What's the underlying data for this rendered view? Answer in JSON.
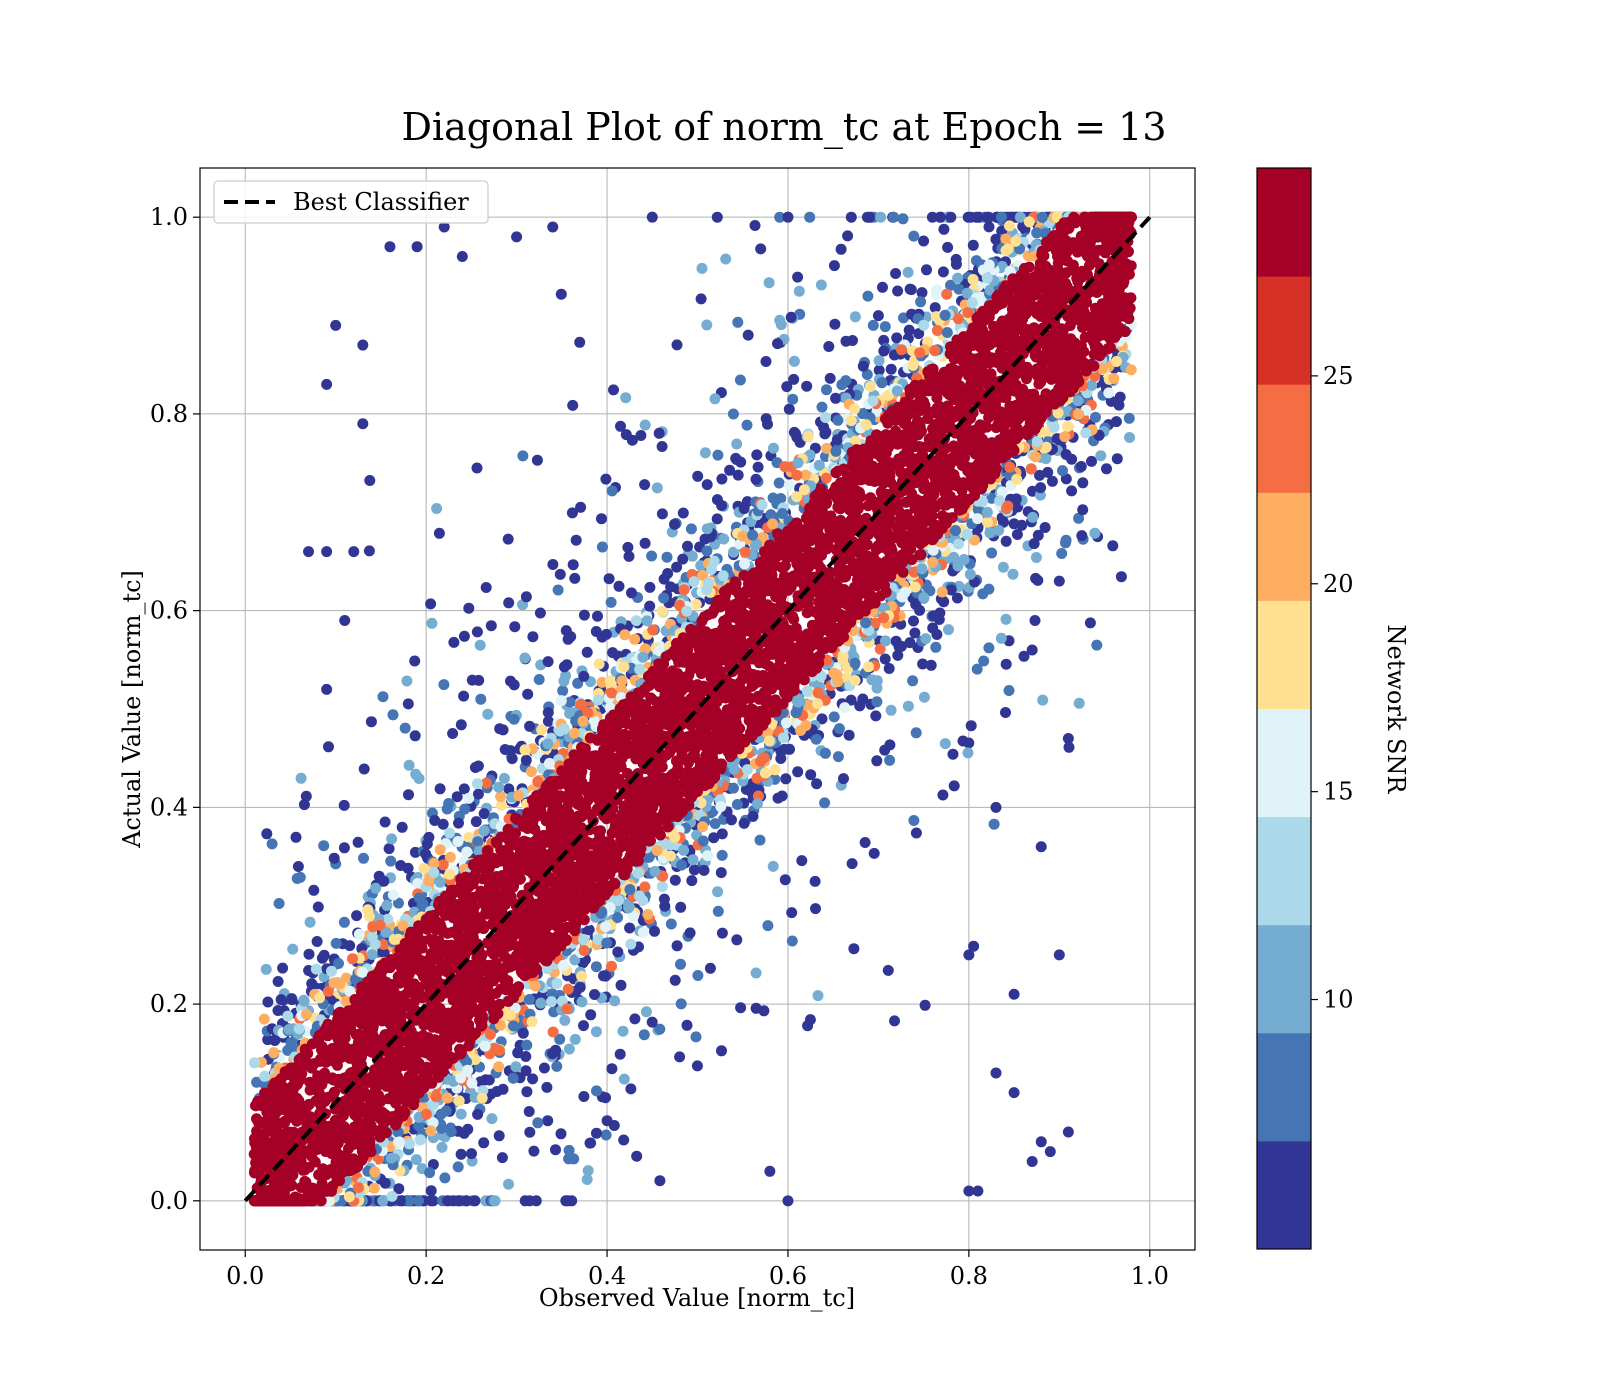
{
  "chart_data": {
    "type": "scatter",
    "title": "Diagonal Plot of norm_tc at Epoch = 13",
    "xlabel": "Observed Value [norm_tc]",
    "ylabel": "Actual Value [norm_tc]",
    "xlim": [
      -0.05,
      1.05
    ],
    "ylim": [
      -0.05,
      1.05
    ],
    "xticks": [
      0.0,
      0.2,
      0.4,
      0.6,
      0.8,
      1.0
    ],
    "yticks": [
      0.0,
      0.2,
      0.4,
      0.6,
      0.8,
      1.0
    ],
    "xtick_labels": [
      "0.0",
      "0.2",
      "0.4",
      "0.6",
      "0.8",
      "1.0"
    ],
    "ytick_labels": [
      "0.0",
      "0.2",
      "0.4",
      "0.6",
      "0.8",
      "1.0"
    ],
    "grid": true,
    "legend": {
      "position": "top-left",
      "entries": [
        {
          "label": "Best Classifier",
          "style": "dashed",
          "color": "#000000"
        }
      ]
    },
    "reference_line": {
      "name": "Best Classifier",
      "x": [
        0.0,
        1.0
      ],
      "y": [
        0.0,
        1.0
      ]
    },
    "colorbar": {
      "label": "Network SNR",
      "min": 4,
      "max": 30,
      "ticks": [
        10,
        15,
        20,
        25
      ],
      "tick_labels": [
        "10",
        "15",
        "20",
        "25"
      ],
      "colors": [
        "#313695",
        "#4575b4",
        "#74add1",
        "#abd9e9",
        "#e0f3f8",
        "#fee090",
        "#fdae61",
        "#f46d43",
        "#d73027",
        "#a50026"
      ]
    },
    "series": [
      {
        "description_visible": "dense band around diagonal, colored by SNR; high-SNR points lie close to y=x, low-SNR points scatter widely",
        "band_halfwidth_high_snr": 0.09,
        "points_low_snr_sample": [
          [
            0.1,
            0.89
          ],
          [
            0.09,
            0.83
          ],
          [
            0.13,
            0.87
          ],
          [
            0.13,
            0.79
          ],
          [
            0.09,
            0.66
          ],
          [
            0.07,
            0.66
          ],
          [
            0.12,
            0.66
          ],
          [
            0.09,
            0.52
          ],
          [
            0.11,
            0.59
          ],
          [
            0.16,
            0.97
          ],
          [
            0.19,
            0.97
          ],
          [
            0.22,
            0.99
          ],
          [
            0.24,
            0.96
          ],
          [
            0.3,
            0.98
          ],
          [
            0.34,
            0.99
          ],
          [
            0.45,
            1.0
          ],
          [
            0.6,
            1.0
          ],
          [
            0.88,
            0.36
          ],
          [
            0.91,
            0.47
          ],
          [
            0.9,
            0.63
          ],
          [
            0.85,
            0.21
          ],
          [
            0.87,
            0.56
          ],
          [
            0.83,
            0.4
          ],
          [
            0.88,
            0.06
          ],
          [
            0.89,
            0.05
          ],
          [
            0.91,
            0.07
          ],
          [
            0.8,
            0.01
          ],
          [
            0.81,
            0.01
          ],
          [
            0.6,
            0.0
          ],
          [
            0.58,
            0.03
          ],
          [
            0.85,
            0.11
          ],
          [
            0.83,
            0.13
          ],
          [
            0.8,
            0.25
          ],
          [
            0.87,
            0.04
          ],
          [
            0.9,
            0.25
          ]
        ]
      }
    ]
  }
}
